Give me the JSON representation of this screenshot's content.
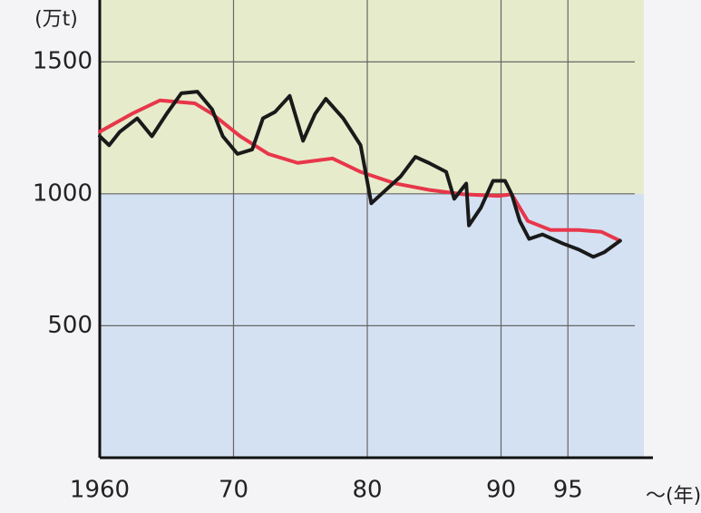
{
  "chart_data": {
    "type": "line",
    "y_label": "(万t)",
    "x_label": "〜(年)",
    "xlim": [
      1960,
      2000
    ],
    "ylim": [
      0,
      1700
    ],
    "xticks": [
      {
        "value": 1960,
        "label": "1960"
      },
      {
        "value": 1970,
        "label": "70"
      },
      {
        "value": 1980,
        "label": "80"
      },
      {
        "value": 1990,
        "label": "90"
      },
      {
        "value": 1995,
        "label": "95"
      }
    ],
    "yticks": [
      500,
      1000,
      1500
    ],
    "grid": true,
    "series": [
      {
        "color": "#1a1a1a",
        "x": [
          1960,
          1960.7,
          1961.5,
          1962.8,
          1963.9,
          1965,
          1966.1,
          1967.3,
          1968.4,
          1969.2,
          1970.3,
          1971.4,
          1972.2,
          1973.1,
          1974.2,
          1975.2,
          1976.1,
          1976.9,
          1978.2,
          1979.5,
          1980.3,
          1981.4,
          1982.5,
          1983.6,
          1984.6,
          1985.9,
          1986.5,
          1987.4,
          1987.6,
          1988.5,
          1989.4,
          1990.3,
          1990.8,
          1991.4,
          1992.1,
          1993.1,
          1994.6,
          1995.8,
          1996.9,
          1997.7,
          1998.9
        ],
        "values": [
          1218,
          1184,
          1235,
          1286,
          1218,
          1303,
          1381,
          1387,
          1320,
          1218,
          1151,
          1168,
          1286,
          1310,
          1371,
          1201,
          1303,
          1360,
          1286,
          1184,
          964,
          1015,
          1066,
          1140,
          1117,
          1083,
          981,
          1039,
          880,
          948,
          1049,
          1049,
          998,
          897,
          829,
          846,
          812,
          789,
          761,
          778,
          822
        ]
      },
      {
        "color": "#e8364a",
        "x": [
          1960,
          1962.4,
          1964.5,
          1967.1,
          1968.4,
          1970.5,
          1972.6,
          1974.8,
          1977.4,
          1979.5,
          1982.1,
          1984.6,
          1987.2,
          1989.8,
          1990.8,
          1992,
          1993.7,
          1995.8,
          1997.5,
          1998.9
        ],
        "values": [
          1235,
          1303,
          1354,
          1343,
          1303,
          1218,
          1151,
          1117,
          1134,
          1083,
          1039,
          1015,
          998,
          992,
          998,
          897,
          863,
          863,
          856,
          822
        ]
      }
    ]
  }
}
